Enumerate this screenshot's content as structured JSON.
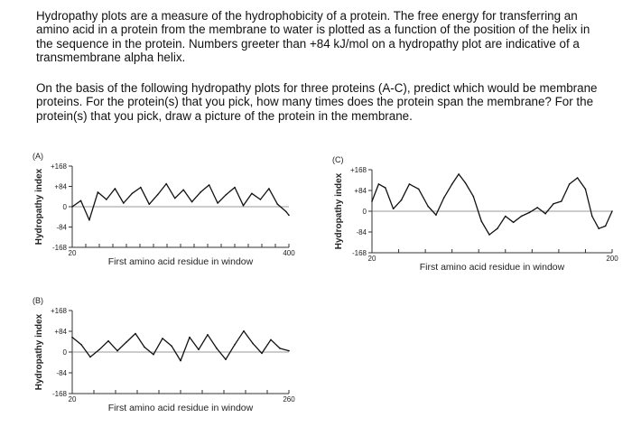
{
  "question": {
    "paragraph1": "Hydropathy plots are a measure of the hydrophobicity of a protein.  The free energy for transferring an amino acid in a protein from the membrane to water is plotted as a function of the position of the helix in the sequence in the protein.  Numbers greeter than +84 kJ/mol on a hydropathy plot are indicative of a transmembrane alpha helix.",
    "paragraph2": "On the basis of the following hydropathy plots for three proteins (A-C), predict which would be membrane proteins.  For the protein(s) that you pick, how many times does the protein span the membrane?  For the protein(s) that you pick, draw a picture of the protein in the membrane."
  },
  "colors": {
    "line": "#111111",
    "axis": "#333333",
    "zero_line": "#777777"
  },
  "chart_data": [
    {
      "panel": "(A)",
      "type": "line",
      "ylabel": "Hydropathy index",
      "xlabel": "First amino acid residue in window",
      "y_ticks": [
        {
          "value": 168,
          "label": "+168"
        },
        {
          "value": 84,
          "label": "+84"
        },
        {
          "value": 0,
          "label": "0"
        },
        {
          "value": -84,
          "label": "-84"
        },
        {
          "value": -168,
          "label": "-168"
        }
      ],
      "x_tick_labels": [
        {
          "value": 20,
          "label": "20"
        },
        {
          "value": 400,
          "label": "400"
        }
      ],
      "xlim": [
        20,
        400
      ],
      "ylim": [
        -168,
        168
      ],
      "minor_ticks": 16,
      "x": [
        20,
        35,
        50,
        65,
        80,
        95,
        110,
        125,
        140,
        155,
        170,
        185,
        200,
        215,
        230,
        245,
        260,
        275,
        290,
        305,
        320,
        335,
        350,
        365,
        380,
        395,
        400
      ],
      "y": [
        0,
        25,
        -55,
        60,
        30,
        75,
        15,
        55,
        80,
        10,
        50,
        95,
        35,
        70,
        20,
        60,
        90,
        15,
        50,
        80,
        5,
        55,
        30,
        75,
        10,
        -20,
        -35
      ]
    },
    {
      "panel": "(B)",
      "type": "line",
      "ylabel": "Hydropathy index",
      "xlabel": "First amino acid residue in window",
      "y_ticks": [
        {
          "value": 168,
          "label": "+168"
        },
        {
          "value": 84,
          "label": "+84"
        },
        {
          "value": 0,
          "label": "0"
        },
        {
          "value": -84,
          "label": "-84"
        },
        {
          "value": -168,
          "label": "-168"
        }
      ],
      "x_tick_labels": [
        {
          "value": 20,
          "label": "20"
        },
        {
          "value": 260,
          "label": "260"
        }
      ],
      "xlim": [
        20,
        260
      ],
      "ylim": [
        -168,
        168
      ],
      "minor_ticks": 10,
      "x": [
        20,
        30,
        40,
        50,
        60,
        70,
        80,
        90,
        100,
        110,
        120,
        130,
        140,
        150,
        160,
        170,
        180,
        190,
        200,
        210,
        220,
        230,
        240,
        250,
        260
      ],
      "y": [
        60,
        30,
        -20,
        10,
        45,
        5,
        40,
        75,
        20,
        -10,
        55,
        25,
        -35,
        60,
        10,
        70,
        15,
        -30,
        30,
        85,
        35,
        -5,
        50,
        15,
        5
      ]
    },
    {
      "panel": "(C)",
      "type": "line",
      "ylabel": "Hydropathy index",
      "xlabel": "First amino acid residue in window",
      "y_ticks": [
        {
          "value": 168,
          "label": "+168"
        },
        {
          "value": 84,
          "label": "+84"
        },
        {
          "value": 0,
          "label": "0"
        },
        {
          "value": -84,
          "label": "-84"
        },
        {
          "value": -168,
          "label": "-168"
        }
      ],
      "x_tick_labels": [
        {
          "value": 20,
          "label": "20"
        },
        {
          "value": 200,
          "label": "200"
        }
      ],
      "xlim": [
        20,
        200
      ],
      "ylim": [
        -168,
        168
      ],
      "minor_ticks": 9,
      "x": [
        20,
        25,
        30,
        36,
        42,
        48,
        55,
        62,
        68,
        74,
        80,
        85,
        90,
        96,
        102,
        108,
        114,
        120,
        126,
        132,
        138,
        144,
        150,
        156,
        162,
        168,
        174,
        180,
        185,
        190,
        195,
        200
      ],
      "y": [
        40,
        110,
        95,
        10,
        45,
        110,
        90,
        20,
        -15,
        55,
        110,
        150,
        115,
        60,
        -40,
        -95,
        -70,
        -20,
        -45,
        -20,
        -5,
        15,
        -10,
        30,
        40,
        110,
        135,
        90,
        -20,
        -70,
        -60,
        0
      ]
    }
  ]
}
